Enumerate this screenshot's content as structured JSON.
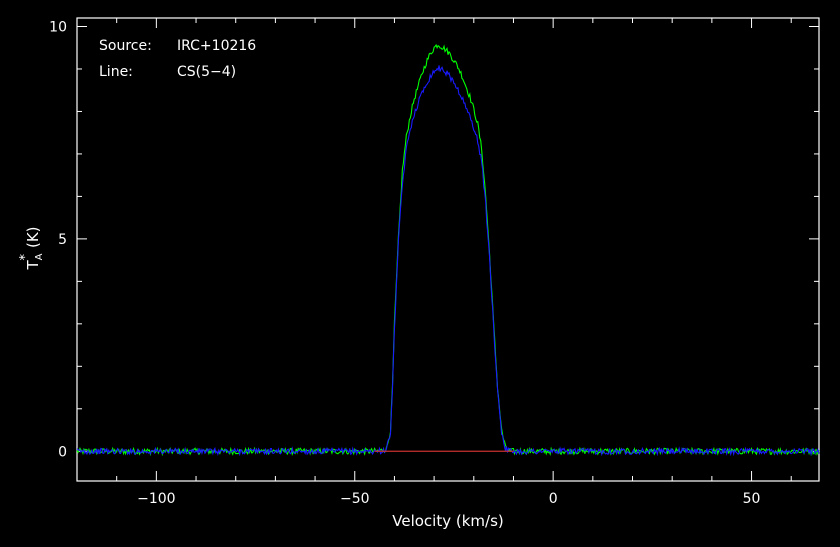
{
  "chart_data": {
    "type": "line",
    "xlabel": "Velocity (km/s)",
    "ylabel": {
      "main": "T",
      "sub": "A",
      "sup": "*",
      "unit": "(K)"
    },
    "xlim": [
      -120,
      67
    ],
    "ylim": [
      -0.7,
      10.2
    ],
    "xticks": [
      -100,
      -50,
      0,
      50
    ],
    "xtick_labels": [
      "−100",
      "−50",
      "0",
      "50"
    ],
    "yticks": [
      0,
      5,
      10
    ],
    "ytick_labels": [
      "0",
      "5",
      "10"
    ],
    "annotations": [
      {
        "key": "Source:",
        "value": "IRC+10216"
      },
      {
        "key": "Line:",
        "value": "CS(5−4)"
      }
    ],
    "baseline": {
      "value": 0,
      "from": -45,
      "to": -10,
      "color": "#c83030"
    },
    "series": [
      {
        "color": "#00ff00",
        "points": [
          [
            -120,
            0
          ],
          [
            -44,
            0
          ],
          [
            -42,
            0.05
          ],
          [
            -41,
            0.5
          ],
          [
            -40.5,
            1.5
          ],
          [
            -40,
            3.0
          ],
          [
            -39,
            5.0
          ],
          [
            -38,
            6.6
          ],
          [
            -37,
            7.4
          ],
          [
            -36,
            7.9
          ],
          [
            -35,
            8.3
          ],
          [
            -34,
            8.6
          ],
          [
            -33,
            8.9
          ],
          [
            -32,
            9.15
          ],
          [
            -31,
            9.35
          ],
          [
            -30,
            9.5
          ],
          [
            -29,
            9.58
          ],
          [
            -28,
            9.52
          ],
          [
            -27,
            9.45
          ],
          [
            -26,
            9.35
          ],
          [
            -25,
            9.2
          ],
          [
            -24,
            9.05
          ],
          [
            -23,
            8.85
          ],
          [
            -22,
            8.6
          ],
          [
            -21,
            8.35
          ],
          [
            -20,
            8.05
          ],
          [
            -19,
            7.7
          ],
          [
            -18,
            7.1
          ],
          [
            -17,
            6.0
          ],
          [
            -16,
            4.6
          ],
          [
            -15,
            3.0
          ],
          [
            -14,
            1.5
          ],
          [
            -13,
            0.5
          ],
          [
            -12,
            0.08
          ],
          [
            -11,
            0
          ],
          [
            67,
            0
          ]
        ]
      },
      {
        "color": "#1a1aff",
        "points": [
          [
            -120,
            0
          ],
          [
            -44,
            0
          ],
          [
            -42,
            0.04
          ],
          [
            -41,
            0.45
          ],
          [
            -40.5,
            1.4
          ],
          [
            -40,
            2.9
          ],
          [
            -39,
            4.9
          ],
          [
            -38,
            6.3
          ],
          [
            -37,
            7.1
          ],
          [
            -36,
            7.6
          ],
          [
            -35,
            7.95
          ],
          [
            -34,
            8.2
          ],
          [
            -33,
            8.45
          ],
          [
            -32,
            8.65
          ],
          [
            -31,
            8.82
          ],
          [
            -30,
            8.95
          ],
          [
            -29,
            9.02
          ],
          [
            -28,
            9.0
          ],
          [
            -27,
            8.92
          ],
          [
            -26,
            8.82
          ],
          [
            -25,
            8.68
          ],
          [
            -24,
            8.52
          ],
          [
            -23,
            8.32
          ],
          [
            -22,
            8.1
          ],
          [
            -21,
            7.88
          ],
          [
            -20,
            7.62
          ],
          [
            -19,
            7.3
          ],
          [
            -18,
            6.8
          ],
          [
            -17,
            5.8
          ],
          [
            -16,
            4.5
          ],
          [
            -15,
            2.9
          ],
          [
            -14,
            1.45
          ],
          [
            -13,
            0.45
          ],
          [
            -12,
            0.07
          ],
          [
            -11,
            0
          ],
          [
            67,
            0
          ]
        ]
      }
    ]
  }
}
